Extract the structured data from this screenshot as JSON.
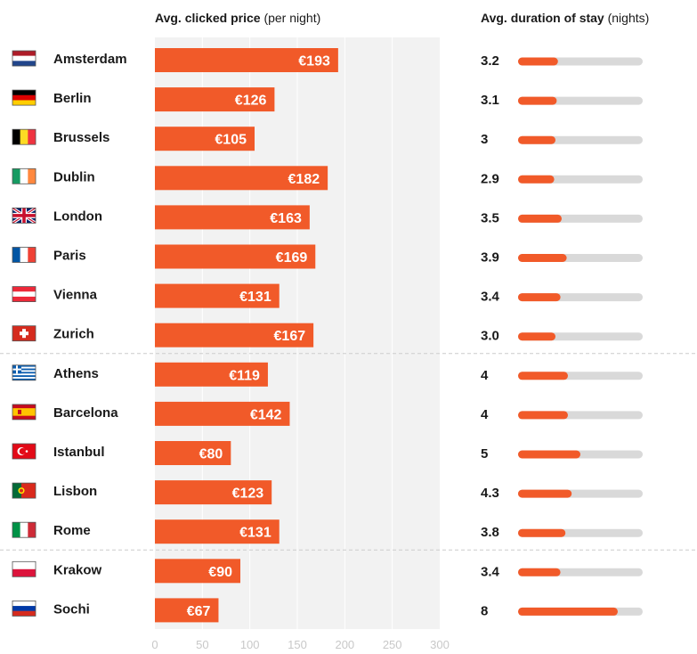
{
  "chart_data": {
    "type": "bar",
    "price_panel": {
      "title_bold": "Avg. clicked price",
      "title_rest": "(per night)",
      "xlim": [
        0,
        300
      ],
      "ticks": [
        0,
        50,
        100,
        150,
        200,
        250,
        300
      ],
      "bar_color": "#f15a29",
      "panel_bg": "#f2f2f2"
    },
    "stay_panel": {
      "title_bold": "Avg. duration of stay",
      "title_rest": "(nights)",
      "max_nights": 10,
      "bar_color": "#f15a29",
      "track_color": "#d9d9d9"
    },
    "groups": [
      {
        "name": "group-1",
        "cities": [
          {
            "city": "Amsterdam",
            "flag": "netherlands-flag-icon",
            "price": 193,
            "price_label": "€193",
            "stay": 3.2,
            "stay_label": "3.2"
          },
          {
            "city": "Berlin",
            "flag": "germany-flag-icon",
            "price": 126,
            "price_label": "€126",
            "stay": 3.1,
            "stay_label": "3.1"
          },
          {
            "city": "Brussels",
            "flag": "belgium-flag-icon",
            "price": 105,
            "price_label": "€105",
            "stay": 3.0,
            "stay_label": "3"
          },
          {
            "city": "Dublin",
            "flag": "ireland-flag-icon",
            "price": 182,
            "price_label": "€182",
            "stay": 2.9,
            "stay_label": "2.9"
          },
          {
            "city": "London",
            "flag": "uk-flag-icon",
            "price": 163,
            "price_label": "€163",
            "stay": 3.5,
            "stay_label": "3.5"
          },
          {
            "city": "Paris",
            "flag": "france-flag-icon",
            "price": 169,
            "price_label": "€169",
            "stay": 3.9,
            "stay_label": "3.9"
          },
          {
            "city": "Vienna",
            "flag": "austria-flag-icon",
            "price": 131,
            "price_label": "€131",
            "stay": 3.4,
            "stay_label": "3.4"
          },
          {
            "city": "Zurich",
            "flag": "switzerland-flag-icon",
            "price": 167,
            "price_label": "€167",
            "stay": 3.0,
            "stay_label": "3.0"
          }
        ]
      },
      {
        "name": "group-2",
        "cities": [
          {
            "city": "Athens",
            "flag": "greece-flag-icon",
            "price": 119,
            "price_label": "€119",
            "stay": 4,
            "stay_label": "4"
          },
          {
            "city": "Barcelona",
            "flag": "spain-flag-icon",
            "price": 142,
            "price_label": "€142",
            "stay": 4,
            "stay_label": "4"
          },
          {
            "city": "Istanbul",
            "flag": "turkey-flag-icon",
            "price": 80,
            "price_label": "€80",
            "stay": 5,
            "stay_label": "5"
          },
          {
            "city": "Lisbon",
            "flag": "portugal-flag-icon",
            "price": 123,
            "price_label": "€123",
            "stay": 4.3,
            "stay_label": "4.3"
          },
          {
            "city": "Rome",
            "flag": "italy-flag-icon",
            "price": 131,
            "price_label": "€131",
            "stay": 3.8,
            "stay_label": "3.8"
          }
        ]
      },
      {
        "name": "group-3",
        "cities": [
          {
            "city": "Krakow",
            "flag": "poland-flag-icon",
            "price": 90,
            "price_label": "€90",
            "stay": 3.4,
            "stay_label": "3.4"
          },
          {
            "city": "Sochi",
            "flag": "russia-flag-icon",
            "price": 67,
            "price_label": "€67",
            "stay": 8,
            "stay_label": "8"
          }
        ]
      }
    ]
  }
}
